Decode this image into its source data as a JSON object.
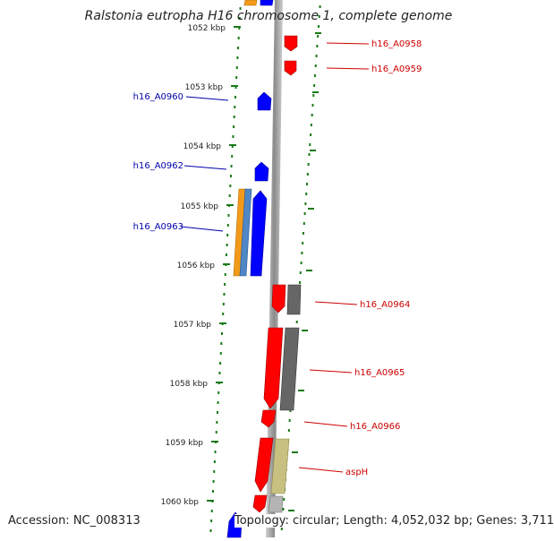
{
  "title": "Ralstonia eutropha H16 chromosome 1, complete genome",
  "footer": {
    "accession": "Accession: NC_008313",
    "summary": "Topology: circular; Length: 4,052,032 bp; Genes: 3,711"
  },
  "colors": {
    "forward_gene": "#ff0000",
    "reverse_gene": "#0000ff",
    "forward_label": "#cc0000",
    "reverse_label": "#0000aa",
    "tick": "#1a7a1a",
    "backbone": "#8f8f8f"
  },
  "ticks": [
    "1052 kbp",
    "1053 kbp",
    "1054 kbp",
    "1055 kbp",
    "1056 kbp",
    "1057 kbp",
    "1058 kbp",
    "1059 kbp",
    "1060 kbp"
  ],
  "gene_labels_reverse": [
    "h16_A0960",
    "h16_A0962",
    "h16_A0963"
  ],
  "gene_labels_forward": [
    "h16_A0958",
    "h16_A0959",
    "h16_A0964",
    "h16_A0965",
    "h16_A0966",
    "aspH"
  ]
}
